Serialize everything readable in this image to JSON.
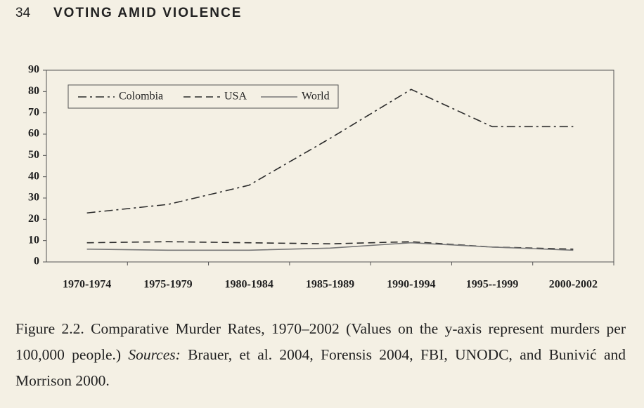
{
  "header": {
    "page_number": "34",
    "running_title": "VOTING AMID VIOLENCE"
  },
  "caption": {
    "text_before": "Figure 2.2. Comparative Murder Rates, 1970–2002 (Values on the y-axis represent murders per 100,000 people.) ",
    "sources_label": "Sources:",
    "text_after": " Brauer, et al. 2004, Forensis 2004, FBI, UNODC, and Bunivić and Morrison 2000."
  },
  "chart_data": {
    "type": "line",
    "categories": [
      "1970-1974",
      "1975-1979",
      "1980-1984",
      "1985-1989",
      "1990-1994",
      "1995--1999",
      "2000-2002"
    ],
    "series": [
      {
        "name": "Colombia",
        "color": "#2a2a2a",
        "dash": "dash-dot",
        "values": [
          23,
          27,
          36,
          58,
          81,
          63.5,
          63.5
        ]
      },
      {
        "name": "USA",
        "color": "#2a2a2a",
        "dash": "dashed",
        "values": [
          9,
          9.5,
          9,
          8.5,
          9.5,
          7,
          6
        ]
      },
      {
        "name": "World",
        "color": "#777777",
        "dash": "solid",
        "values": [
          6,
          5.5,
          5.5,
          6.5,
          9,
          7,
          5.5
        ]
      }
    ],
    "ylim": [
      0,
      90
    ],
    "yticks": [
      0,
      10,
      20,
      30,
      40,
      50,
      60,
      70,
      80,
      90
    ],
    "grid": false,
    "legend": "upper left"
  }
}
